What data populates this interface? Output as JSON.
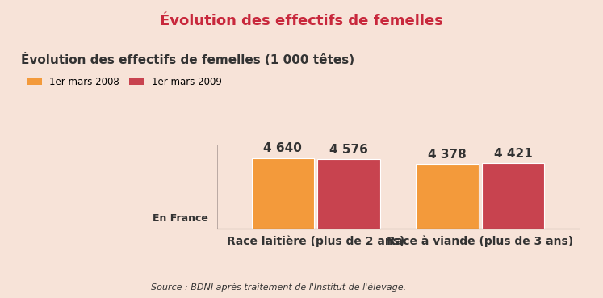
{
  "chart_data": {
    "type": "bar",
    "title": "Évolution des effectifs de femelles",
    "subtitle": "Évolution des effectifs de femelles (1 000 têtes)",
    "annotations": [
      "En France",
      "Source : BDNI après traitement de l'Institut de l'élevage."
    ],
    "categories": [
      "Race laitière (plus de 2 ans)",
      "Race à viande (plus de 3 ans)"
    ],
    "series": [
      {
        "name": "1er mars 2008",
        "color": "#f39a3b",
        "values": [
          4640,
          4378
        ],
        "value_labels": [
          "4 640",
          "4 378"
        ]
      },
      {
        "name": "1er mars 2009",
        "color": "#c8434f",
        "values": [
          4576,
          4421
        ],
        "value_labels": [
          "4 576",
          "4 421"
        ]
      }
    ],
    "ylim": [
      1750,
      5200
    ],
    "yticks": [],
    "tick_labels": "x",
    "data_labels": true,
    "legend": "upper left",
    "grid": false
  }
}
